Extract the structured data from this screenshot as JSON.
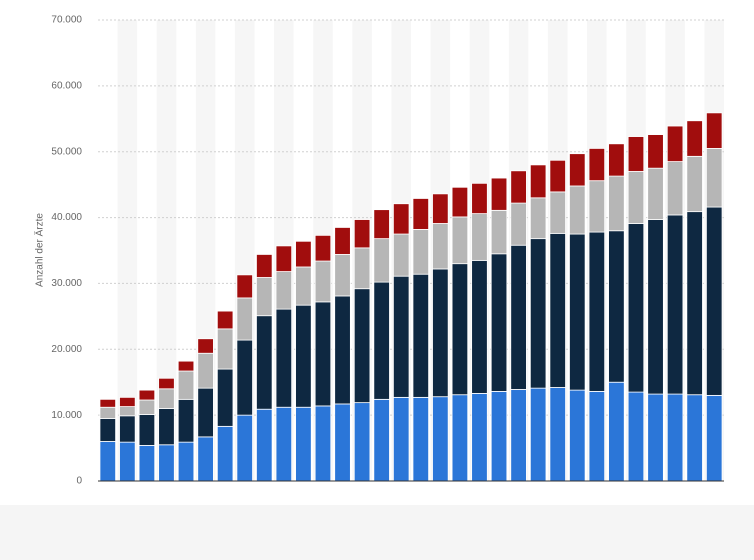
{
  "chart_data": {
    "type": "stacked-bar",
    "y_label": "Anzahl der Ärzte",
    "categories": [
      null,
      null,
      null,
      null,
      null,
      null,
      null,
      null,
      null,
      null,
      null,
      null,
      null,
      null,
      null,
      null,
      null,
      null,
      null,
      null,
      null,
      null,
      null,
      null,
      null,
      null,
      null,
      null,
      null,
      null,
      null,
      null
    ],
    "series": [
      {
        "color": "#2b76d8",
        "values": [
          6000,
          5900,
          5400,
          5500,
          5900,
          6700,
          8300,
          10000,
          10900,
          11200,
          11200,
          11400,
          11700,
          11900,
          12400,
          12700,
          12700,
          12800,
          13100,
          13300,
          13600,
          13900,
          14100,
          14200,
          13800,
          13600,
          15000,
          13500,
          13200,
          13200,
          13100,
          13000
        ]
      },
      {
        "color": "#0e2841",
        "values": [
          3500,
          4000,
          4700,
          5500,
          6500,
          7400,
          8700,
          11400,
          14200,
          14900,
          15500,
          15800,
          16400,
          17300,
          17800,
          18400,
          18700,
          19400,
          19900,
          20200,
          20900,
          21900,
          22700,
          23400,
          23700,
          24200,
          23000,
          25600,
          26500,
          27200,
          27800,
          28600
        ]
      },
      {
        "color": "#b6b6b6",
        "values": [
          1700,
          1400,
          2200,
          3000,
          4300,
          5300,
          6100,
          6400,
          5800,
          5700,
          5800,
          6200,
          6300,
          6200,
          6600,
          6400,
          6800,
          6900,
          7100,
          7100,
          6600,
          6400,
          6200,
          6300,
          7300,
          7800,
          8300,
          7900,
          7800,
          8100,
          8400,
          8900
        ]
      },
      {
        "color": "#a10d0d",
        "values": [
          1200,
          1400,
          1500,
          1600,
          1500,
          2200,
          2700,
          3500,
          3500,
          3900,
          3900,
          3900,
          4100,
          4300,
          4400,
          4600,
          4700,
          4500,
          4500,
          4600,
          4900,
          4900,
          5000,
          4800,
          4900,
          4900,
          4900,
          5300,
          5100,
          5400,
          5400,
          5400
        ]
      }
    ],
    "ylim": [
      0,
      70000
    ],
    "yticks": [
      0,
      {
        "value": 10000,
        "label": "10.000"
      },
      {
        "value": 20000,
        "label": "20.000"
      },
      {
        "value": 30000,
        "label": "30.000"
      },
      {
        "value": 40000,
        "label": "40.000"
      },
      {
        "value": 50000,
        "label": "50.000"
      },
      {
        "value": 60000,
        "label": "60.000"
      },
      {
        "value": 70000,
        "label": "70.000"
      }
    ],
    "grid": true
  }
}
